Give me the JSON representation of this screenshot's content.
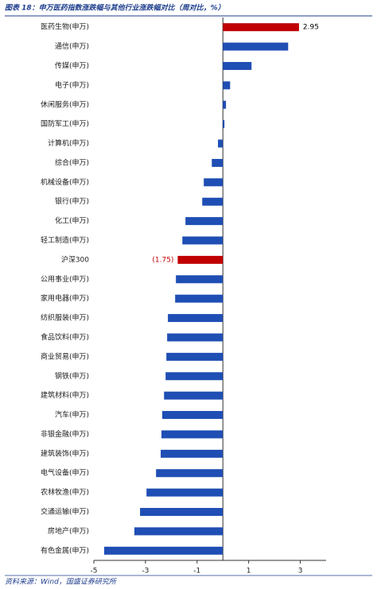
{
  "chart_data": {
    "type": "barh",
    "title": "图表 18：申万医药指数涨跌幅与其他行业涨跌幅对比（周对比，%）",
    "source": "资料来源：Wind，国盛证券研究所",
    "categories": [
      "医药生物(申万)",
      "通信(申万)",
      "传媒(申万)",
      "电子(申万)",
      "休闲服务(申万)",
      "国防军工(申万)",
      "计算机(申万)",
      "综合(申万)",
      "机械设备(申万)",
      "银行(申万)",
      "化工(申万)",
      "轻工制造(申万)",
      "沪深300",
      "公用事业(申万)",
      "家用电器(申万)",
      "纺织服装(申万)",
      "食品饮料(申万)",
      "商业贸易(申万)",
      "钢铁(申万)",
      "建筑材料(申万)",
      "汽车(申万)",
      "非银金融(申万)",
      "建筑装饰(申万)",
      "电气设备(申万)",
      "农林牧渔(申万)",
      "交通运输(申万)",
      "房地产(申万)",
      "有色金属(申万)"
    ],
    "values": [
      2.95,
      2.53,
      1.11,
      0.28,
      0.12,
      0.06,
      -0.19,
      -0.43,
      -0.74,
      -0.8,
      -1.45,
      -1.57,
      -1.75,
      -1.82,
      -1.85,
      -2.13,
      -2.16,
      -2.19,
      -2.22,
      -2.28,
      -2.35,
      -2.38,
      -2.41,
      -2.59,
      -2.96,
      -3.21,
      -3.43,
      -4.6
    ],
    "value_labels": [
      "2.95",
      null,
      null,
      null,
      null,
      null,
      null,
      null,
      null,
      null,
      null,
      null,
      "(1.75)",
      null,
      null,
      null,
      null,
      null,
      null,
      null,
      null,
      null,
      null,
      null,
      null,
      null,
      null,
      null
    ],
    "colors": [
      "#c00000",
      "#1f4eb4",
      "#1f4eb4",
      "#1f4eb4",
      "#1f4eb4",
      "#1f4eb4",
      "#1f4eb4",
      "#1f4eb4",
      "#1f4eb4",
      "#1f4eb4",
      "#1f4eb4",
      "#1f4eb4",
      "#c00000",
      "#1f4eb4",
      "#1f4eb4",
      "#1f4eb4",
      "#1f4eb4",
      "#1f4eb4",
      "#1f4eb4",
      "#1f4eb4",
      "#1f4eb4",
      "#1f4eb4",
      "#1f4eb4",
      "#1f4eb4",
      "#1f4eb4",
      "#1f4eb4",
      "#1f4eb4",
      "#1f4eb4"
    ],
    "xlim": [
      -5,
      4
    ],
    "xticks": [
      -5,
      -3,
      -1,
      1,
      3
    ],
    "grid": false
  }
}
